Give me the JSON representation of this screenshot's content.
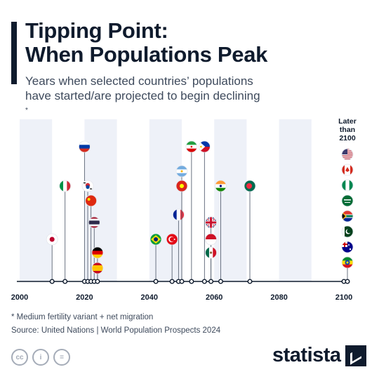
{
  "header": {
    "title_line1": "Tipping Point:",
    "title_line2": "When Populations Peak",
    "subtitle_line1": "Years when selected countries’ populations",
    "subtitle_line2": "have started/are projected to begin declining",
    "subtitle_marker": "*"
  },
  "chart_data": {
    "type": "scatter",
    "xlim": [
      2000,
      2100
    ],
    "ticks": [
      2000,
      2020,
      2040,
      2060,
      2080,
      2100
    ],
    "shaded_bands": [
      [
        2000,
        2010
      ],
      [
        2020,
        2030
      ],
      [
        2040,
        2050
      ],
      [
        2060,
        2070
      ],
      [
        2080,
        2090
      ]
    ],
    "later_label": "Later than 2100",
    "colors": {
      "band": "#eef1f8",
      "axis": "#0f1b2d",
      "stem": "#5b6474"
    },
    "points": [
      {
        "flag": "japan-flag",
        "year": 2010
      },
      {
        "flag": "italy-flag",
        "year": 2014
      },
      {
        "flag": "russia-flag",
        "year": 2020
      },
      {
        "flag": "south-korea-flag",
        "year": 2021
      },
      {
        "flag": "china-flag",
        "year": 2022
      },
      {
        "flag": "thailand-flag",
        "year": 2023
      },
      {
        "flag": "germany-flag",
        "year": 2024
      },
      {
        "flag": "spain-flag",
        "year": 2024
      },
      {
        "flag": "brazil-flag",
        "year": 2042
      },
      {
        "flag": "turkey-flag",
        "year": 2047
      },
      {
        "flag": "france-flag",
        "year": 2049
      },
      {
        "flag": "argentina-flag",
        "year": 2050
      },
      {
        "flag": "vietnam-flag",
        "year": 2050
      },
      {
        "flag": "iran-flag",
        "year": 2053
      },
      {
        "flag": "philippines-flag",
        "year": 2057
      },
      {
        "flag": "uk-flag",
        "year": 2059
      },
      {
        "flag": "indonesia-flag",
        "year": 2059
      },
      {
        "flag": "mexico-flag",
        "year": 2059
      },
      {
        "flag": "india-flag",
        "year": 2062
      },
      {
        "flag": "bangladesh-flag",
        "year": 2071
      }
    ],
    "later_than_2100": [
      "usa-flag",
      "canada-flag",
      "nigeria-flag",
      "saudi-arabia-flag",
      "south-africa-flag",
      "pakistan-flag",
      "australia-flag",
      "ethiopia-flag"
    ]
  },
  "footer": {
    "footnote": "* Medium fertility variant + net migration",
    "source": "Source: United Nations | World Population Prospects 2024",
    "brand": "statista",
    "cc_icons": [
      "cc-icon",
      "attribution-icon",
      "no-derivatives-icon"
    ],
    "cc_glyphs": [
      "cc",
      "i",
      "="
    ]
  }
}
